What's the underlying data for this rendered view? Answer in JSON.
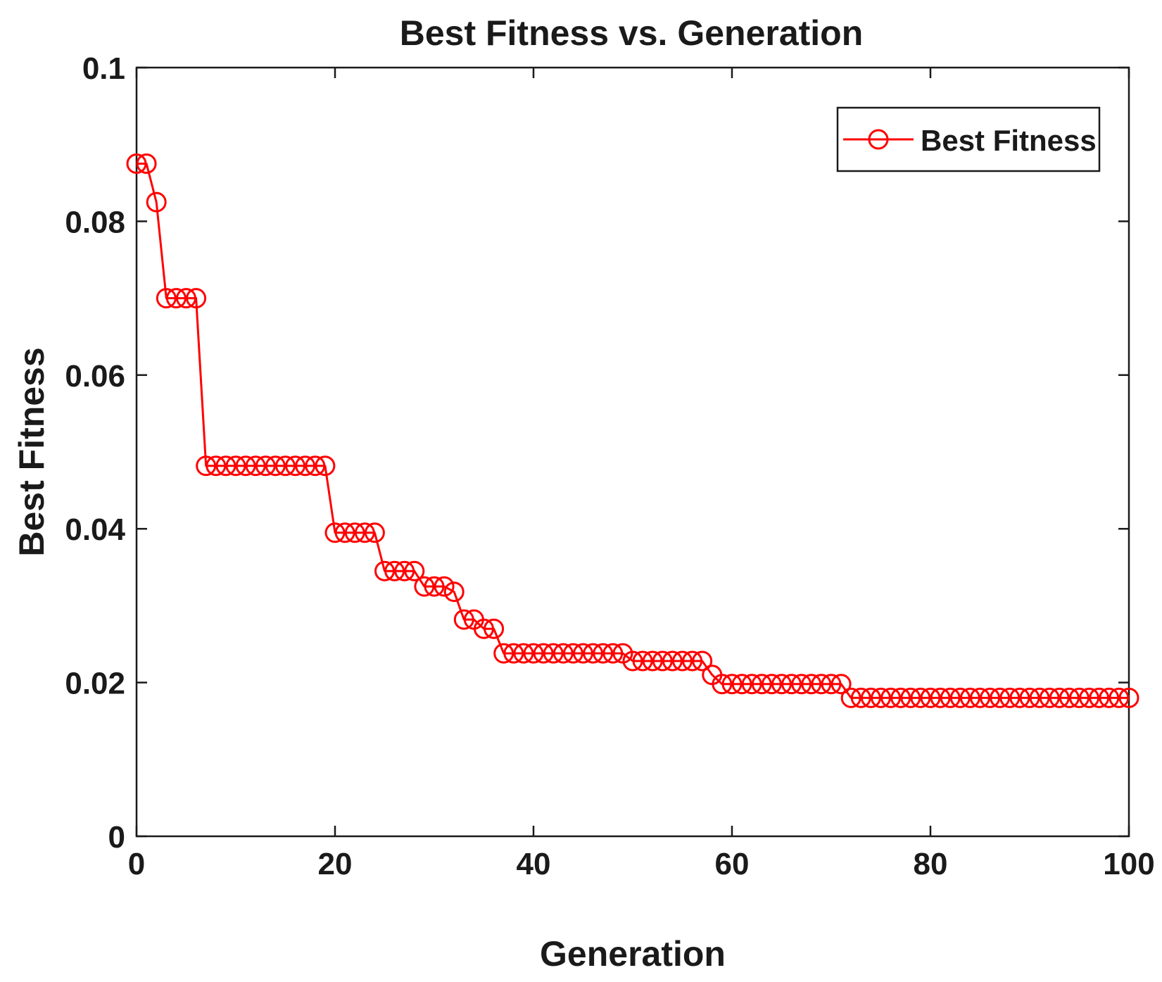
{
  "chart_data": {
    "type": "line",
    "title": "Best Fitness vs. Generation",
    "xlabel": "Generation",
    "ylabel": "Best Fitness",
    "xlim": [
      0,
      100
    ],
    "ylim": [
      0,
      0.1
    ],
    "xticks": [
      0,
      20,
      40,
      60,
      80,
      100
    ],
    "xtick_labels": [
      "0",
      "20",
      "40",
      "60",
      "80",
      "100"
    ],
    "yticks": [
      0,
      0.02,
      0.04,
      0.06,
      0.08,
      0.1
    ],
    "ytick_labels": [
      "0",
      "0.02",
      "0.04",
      "0.06",
      "0.08",
      "0.1"
    ],
    "grid": false,
    "legend_position": "top-right",
    "colors": {
      "series": "#ff0000",
      "axes": "#1a1a1a"
    },
    "series": [
      {
        "name": "Best Fitness",
        "marker": "circle",
        "x": [
          0,
          1,
          2,
          3,
          4,
          5,
          6,
          7,
          8,
          9,
          10,
          11,
          12,
          13,
          14,
          15,
          16,
          17,
          18,
          19,
          20,
          21,
          22,
          23,
          24,
          25,
          26,
          27,
          28,
          29,
          30,
          31,
          32,
          33,
          34,
          35,
          36,
          37,
          38,
          39,
          40,
          41,
          42,
          43,
          44,
          45,
          46,
          47,
          48,
          49,
          50,
          51,
          52,
          53,
          54,
          55,
          56,
          57,
          58,
          59,
          60,
          61,
          62,
          63,
          64,
          65,
          66,
          67,
          68,
          69,
          70,
          71,
          72,
          73,
          74,
          75,
          76,
          77,
          78,
          79,
          80,
          81,
          82,
          83,
          84,
          85,
          86,
          87,
          88,
          89,
          90,
          91,
          92,
          93,
          94,
          95,
          96,
          97,
          98,
          99,
          100
        ],
        "values": [
          0.0875,
          0.0875,
          0.0825,
          0.07,
          0.07,
          0.07,
          0.07,
          0.0482,
          0.0482,
          0.0482,
          0.0482,
          0.0482,
          0.0482,
          0.0482,
          0.0482,
          0.0482,
          0.0482,
          0.0482,
          0.0482,
          0.0482,
          0.0395,
          0.0395,
          0.0395,
          0.0395,
          0.0395,
          0.0345,
          0.0345,
          0.0345,
          0.0345,
          0.0325,
          0.0325,
          0.0325,
          0.0318,
          0.0282,
          0.0282,
          0.027,
          0.027,
          0.0238,
          0.0238,
          0.0238,
          0.0238,
          0.0238,
          0.0238,
          0.0238,
          0.0238,
          0.0238,
          0.0238,
          0.0238,
          0.0238,
          0.0238,
          0.0228,
          0.0228,
          0.0228,
          0.0228,
          0.0228,
          0.0228,
          0.0228,
          0.0228,
          0.021,
          0.0198,
          0.0198,
          0.0198,
          0.0198,
          0.0198,
          0.0198,
          0.0198,
          0.0198,
          0.0198,
          0.0198,
          0.0198,
          0.0198,
          0.0198,
          0.018,
          0.018,
          0.018,
          0.018,
          0.018,
          0.018,
          0.018,
          0.018,
          0.018,
          0.018,
          0.018,
          0.018,
          0.018,
          0.018,
          0.018,
          0.018,
          0.018,
          0.018,
          0.018,
          0.018,
          0.018,
          0.018,
          0.018,
          0.018,
          0.018,
          0.018,
          0.018,
          0.018,
          0.018
        ]
      }
    ]
  }
}
